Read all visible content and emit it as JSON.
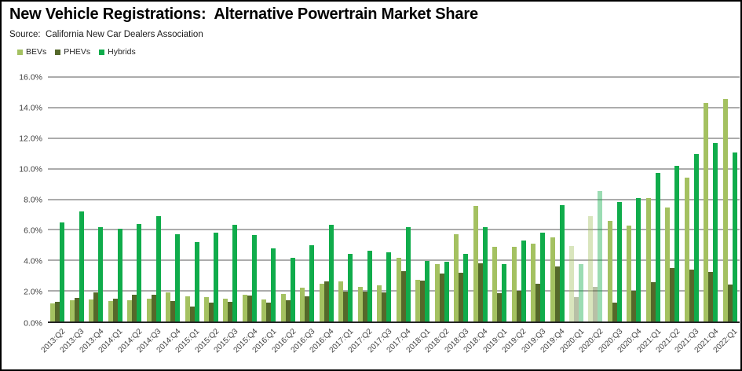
{
  "header": {
    "title": "New Vehicle Registrations:  Alternative Powertrain Market Share",
    "source": "Source:  California New Car Dealers Association"
  },
  "chart_data": {
    "type": "bar",
    "title": "New Vehicle Registrations:  Alternative Powertrain Market Share",
    "subtitle": "Source:  California New Car Dealers Association",
    "categories": [
      "2013:Q2",
      "2013:Q3",
      "2013:Q4",
      "2014:Q1",
      "2014:Q2",
      "2014:Q3",
      "2014:Q4",
      "2015:Q1",
      "2015:Q2",
      "2015:Q3",
      "2015:Q4",
      "2016:Q1",
      "2016:Q2",
      "2016:Q3",
      "2016:Q4",
      "2017:Q1",
      "2017:Q2",
      "2017:Q3",
      "2017:Q4",
      "2018:Q1",
      "2018:Q2",
      "2018:Q3",
      "2018:Q4",
      "2019:Q1",
      "2019:Q2",
      "2019:Q3",
      "2019:Q4",
      "2020:Q1",
      "2020:Q2",
      "2020:Q3",
      "2020:Q4",
      "2021:Q1",
      "2021:Q2",
      "2021:Q3",
      "2021:Q4",
      "2022:Q1"
    ],
    "series": [
      {
        "name": "BEVs",
        "color": "#A4C161",
        "values": [
          1.2,
          1.4,
          1.45,
          1.35,
          1.4,
          1.5,
          1.9,
          1.65,
          1.6,
          1.5,
          1.75,
          1.45,
          1.8,
          2.2,
          2.45,
          2.6,
          2.25,
          2.35,
          4.15,
          2.75,
          3.75,
          5.7,
          7.55,
          4.9,
          4.9,
          5.1,
          5.5,
          4.95,
          6.9,
          6.6,
          6.3,
          8.1,
          7.45,
          9.4,
          14.3,
          14.55
        ]
      },
      {
        "name": "PHEVs",
        "color": "#55682A",
        "values": [
          1.3,
          1.55,
          1.9,
          1.5,
          1.75,
          1.75,
          1.35,
          1.0,
          1.25,
          1.3,
          1.7,
          1.25,
          1.4,
          1.65,
          2.65,
          1.95,
          1.95,
          1.9,
          3.3,
          2.7,
          3.15,
          3.2,
          3.8,
          1.85,
          2.0,
          2.45,
          3.6,
          1.6,
          2.25,
          1.25,
          2.0,
          2.55,
          3.5,
          3.4,
          3.25,
          2.4
        ]
      },
      {
        "name": "Hybrids",
        "color": "#10AC4B",
        "values": [
          6.5,
          7.2,
          6.2,
          6.05,
          6.4,
          6.9,
          5.7,
          5.2,
          5.8,
          6.35,
          5.65,
          4.8,
          4.15,
          5.0,
          6.35,
          4.4,
          4.65,
          4.55,
          6.2,
          3.95,
          3.9,
          4.4,
          6.15,
          3.75,
          5.3,
          5.8,
          7.6,
          3.75,
          8.55,
          7.8,
          8.1,
          9.7,
          10.2,
          10.95,
          11.7,
          11.05
        ]
      }
    ],
    "ylim": [
      0,
      16
    ],
    "ytick_step": 2,
    "ytick_labels": [
      "0.0%",
      "2.0%",
      "4.0%",
      "6.0%",
      "8.0%",
      "10.0%",
      "12.0%",
      "14.0%",
      "16.0%"
    ],
    "xlabel": "",
    "ylabel": "",
    "grid": true,
    "legend_position": "top-left",
    "faded_categories": [
      "2020:Q1",
      "2020:Q2"
    ],
    "faded_opacity": 0.42,
    "gridline_color": "#ACACAC",
    "axis_line_color": "#262626",
    "axis_text_color": "#3f3f3f"
  }
}
